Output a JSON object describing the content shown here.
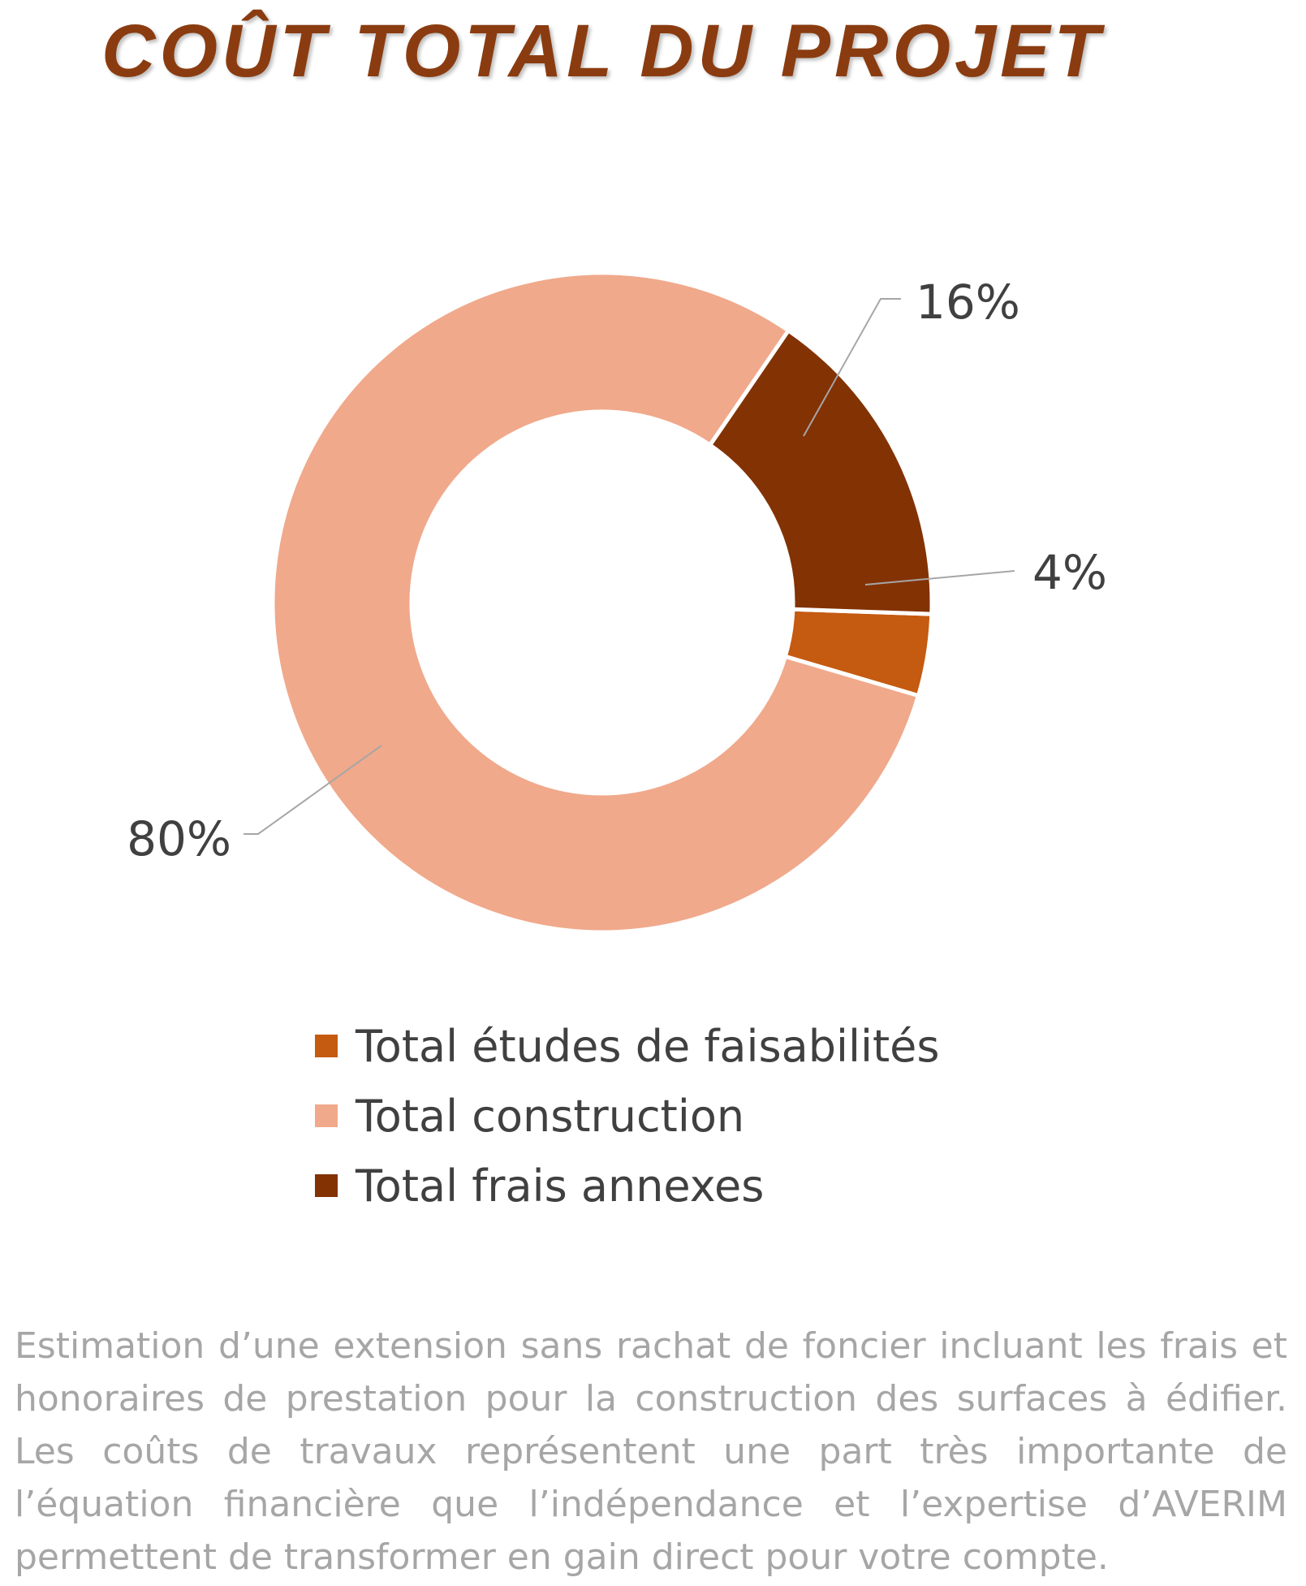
{
  "title": "COÛT TOTAL DU PROJET",
  "chart_data": {
    "type": "pie",
    "variant": "donut",
    "title": "COÛT TOTAL DU PROJET",
    "categories": [
      "Total études de faisabilités",
      "Total construction",
      "Total frais annexes"
    ],
    "values": [
      4,
      80,
      16
    ],
    "unit": "%",
    "data_labels": [
      "4%",
      "80%",
      "16%"
    ],
    "colors": [
      "#c55a11",
      "#f0a98b",
      "#833204"
    ],
    "legend_position": "bottom"
  },
  "legend": [
    {
      "label": "Total études de faisabilités",
      "color": "#c55a11"
    },
    {
      "label": "Total construction",
      "color": "#f0a98b"
    },
    {
      "label": "Total frais annexes",
      "color": "#833204"
    }
  ],
  "description": "Estimation d’une extension sans rachat de foncier incluant les frais et honoraires de prestation pour la construction des surfaces à édifier. Les coûts de travaux représentent une part très importante de l’équation financière que l’indépendance et l’expertise d’AVERIM permettent de transformer en gain direct pour votre compte."
}
